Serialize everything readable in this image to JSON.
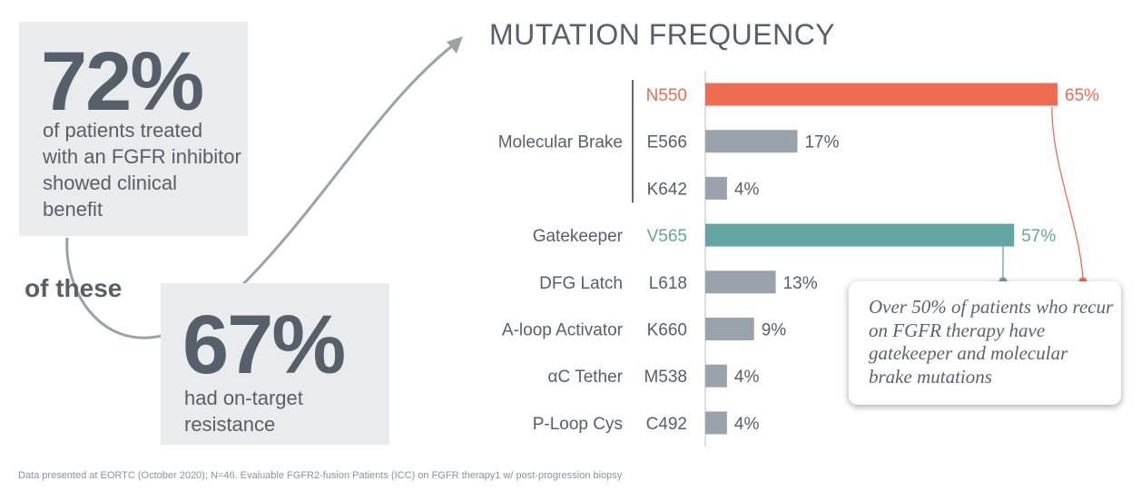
{
  "stat1": {
    "value": "72%",
    "text": "of patients treated with an FGFR inhibitor showed clinical benefit"
  },
  "connector": "of these",
  "stat2": {
    "value": "67%",
    "text": "had on-target resistance"
  },
  "chart_data": {
    "type": "bar",
    "orientation": "horizontal",
    "title": "MUTATION FREQUENCY",
    "xlim": [
      0,
      65
    ],
    "groups": [
      {
        "name": "Molecular Brake",
        "rows": [
          "N550",
          "E566",
          "K642"
        ]
      },
      {
        "name": "Gatekeeper",
        "rows": [
          "V565"
        ]
      },
      {
        "name": "DFG Latch",
        "rows": [
          "L618"
        ]
      },
      {
        "name": "A-loop Activator",
        "rows": [
          "K660"
        ]
      },
      {
        "name": "αC Tether",
        "rows": [
          "M538"
        ]
      },
      {
        "name": "P-Loop Cys",
        "rows": [
          "C492"
        ]
      }
    ],
    "categories": [
      "N550",
      "E566",
      "K642",
      "V565",
      "L618",
      "K660",
      "M538",
      "C492"
    ],
    "values": [
      65,
      17,
      4,
      57,
      13,
      9,
      4,
      4
    ],
    "labels": [
      "65%",
      "17%",
      "4%",
      "57%",
      "13%",
      "9%",
      "4%",
      "4%"
    ],
    "colors": [
      "#f06c50",
      "#9aa2ab",
      "#9aa2ab",
      "#62a5a2",
      "#9aa2ab",
      "#9aa2ab",
      "#9aa2ab",
      "#9aa2ab"
    ]
  },
  "callout": {
    "text": "Over 50% of patients who recur on FGFR therapy have gatekeeper and molecular brake mutations"
  },
  "footnote": "Data presented at EORTC (October 2020); N=46. Evaluable FGFR2-fusion Patients (ICC) on FGFR therapy1 w/ post-progression biopsy",
  "colors": {
    "box_bg": "#e9ebed",
    "text": "#56606a",
    "accent": "#f06c50",
    "teal": "#62a5a2",
    "grey_bar": "#9aa2ab"
  }
}
